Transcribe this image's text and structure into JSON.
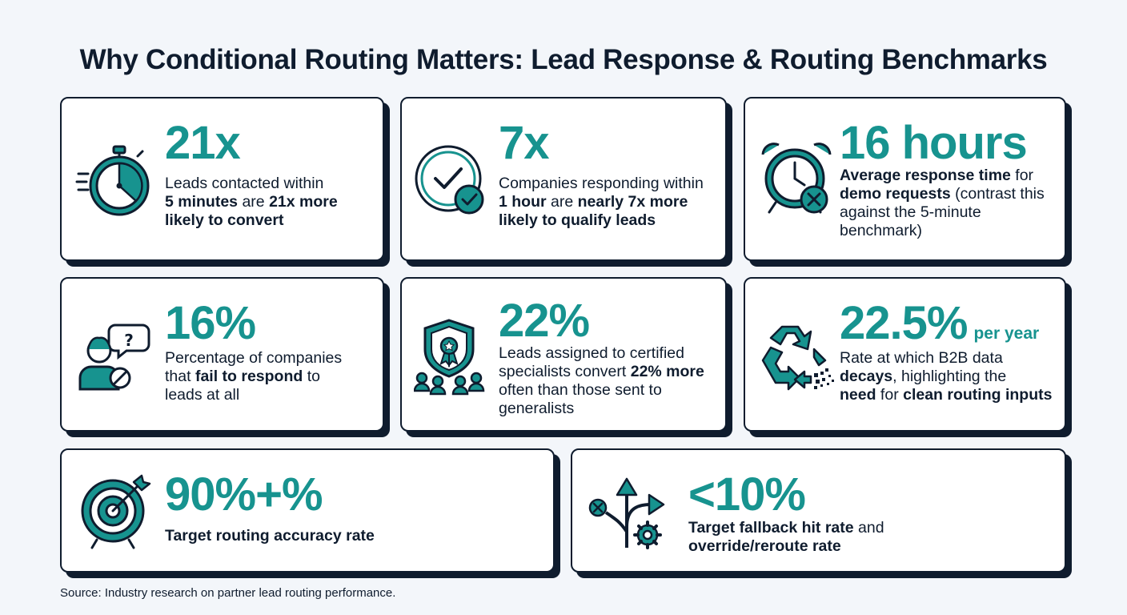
{
  "title": "Why Conditional Routing Matters: Lead Response & Routing Benchmarks",
  "accent_color": "#17938f",
  "ink_color": "#0f1c2e",
  "cards": [
    {
      "icon": "stopwatch-icon",
      "stat": "21x",
      "desc": [
        {
          "t": "Leads contacted within",
          "b": false
        },
        {
          "br": true
        },
        {
          "t": "5 minutes",
          "b": true
        },
        {
          "t": " are ",
          "b": false
        },
        {
          "t": "21x more",
          "b": true
        },
        {
          "br": true
        },
        {
          "t": "likely to convert",
          "b": true
        }
      ]
    },
    {
      "icon": "clock-check-icon",
      "stat": "7x",
      "desc": [
        {
          "t": "Companies responding within",
          "b": false
        },
        {
          "br": true
        },
        {
          "t": "1 hour",
          "b": true
        },
        {
          "t": " are ",
          "b": false
        },
        {
          "t": "nearly 7x more",
          "b": true
        },
        {
          "br": true
        },
        {
          "t": "likely to qualify leads",
          "b": true
        }
      ]
    },
    {
      "icon": "alarm-clock-x-icon",
      "stat": "16 hours",
      "desc": [
        {
          "t": "Average response time",
          "b": true
        },
        {
          "t": " for",
          "b": false
        },
        {
          "br": true
        },
        {
          "t": "demo requests",
          "b": true
        },
        {
          "t": " (contrast this",
          "b": false
        },
        {
          "br": true
        },
        {
          "t": "against the 5-minute",
          "b": false
        },
        {
          "br": true
        },
        {
          "t": "benchmark)",
          "b": false
        }
      ]
    },
    {
      "icon": "person-question-icon",
      "stat": "16%",
      "desc": [
        {
          "t": "Percentage of companies",
          "b": false
        },
        {
          "br": true
        },
        {
          "t": "that ",
          "b": false
        },
        {
          "t": "fail to respond",
          "b": true
        },
        {
          "t": " to",
          "b": false
        },
        {
          "br": true
        },
        {
          "t": "leads at all",
          "b": false
        }
      ]
    },
    {
      "icon": "certified-shield-team-icon",
      "stat": "22%",
      "desc": [
        {
          "t": "Leads assigned to certified",
          "b": false
        },
        {
          "br": true
        },
        {
          "t": "specialists convert ",
          "b": false
        },
        {
          "t": "22% more",
          "b": true
        },
        {
          "br": true
        },
        {
          "t": "often than those sent to",
          "b": false
        },
        {
          "br": true
        },
        {
          "t": "generalists",
          "b": false
        }
      ]
    },
    {
      "icon": "recycle-decay-icon",
      "stat": "22.5%",
      "stat_suffix": "per year",
      "desc": [
        {
          "t": "Rate at which B2B data",
          "b": false
        },
        {
          "br": true
        },
        {
          "t": "decays",
          "b": true
        },
        {
          "t": ", highlighting the",
          "b": false
        },
        {
          "br": true
        },
        {
          "t": "need",
          "b": true
        },
        {
          "t": " for ",
          "b": false
        },
        {
          "t": "clean routing inputs",
          "b": true
        }
      ]
    },
    {
      "icon": "target-arrow-icon",
      "stat": "90%+%",
      "desc": [
        {
          "t": "Target routing accuracy rate",
          "b": true
        }
      ]
    },
    {
      "icon": "branching-arrows-gear-icon",
      "stat": "<10%",
      "desc": [
        {
          "t": "Target fallback hit rate",
          "b": true
        },
        {
          "t": " and",
          "b": false
        },
        {
          "br": true
        },
        {
          "t": "override/reroute rate",
          "b": true
        }
      ]
    }
  ],
  "source": "Source: Industry research on partner lead routing performance."
}
